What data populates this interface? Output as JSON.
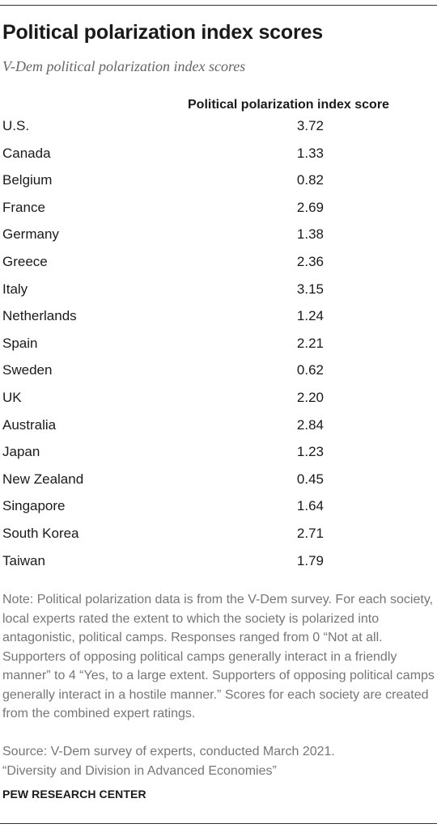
{
  "header": {
    "title": "Political polarization index scores",
    "subtitle": "V-Dem political polarization index scores"
  },
  "chart_data": {
    "type": "table",
    "columns": [
      "",
      "Political polarization index score"
    ],
    "rows": [
      {
        "country": "U.S.",
        "score": "3.72"
      },
      {
        "country": "Canada",
        "score": "1.33"
      },
      {
        "country": "Belgium",
        "score": "0.82"
      },
      {
        "country": "France",
        "score": "2.69"
      },
      {
        "country": "Germany",
        "score": "1.38"
      },
      {
        "country": "Greece",
        "score": "2.36"
      },
      {
        "country": "Italy",
        "score": "3.15"
      },
      {
        "country": "Netherlands",
        "score": "1.24"
      },
      {
        "country": "Spain",
        "score": "2.21"
      },
      {
        "country": "Sweden",
        "score": "0.62"
      },
      {
        "country": "UK",
        "score": "2.20"
      },
      {
        "country": "Australia",
        "score": "2.84"
      },
      {
        "country": "Japan",
        "score": "1.23"
      },
      {
        "country": "New Zealand",
        "score": "0.45"
      },
      {
        "country": "Singapore",
        "score": "1.64"
      },
      {
        "country": "South Korea",
        "score": "2.71"
      },
      {
        "country": "Taiwan",
        "score": "1.79"
      }
    ]
  },
  "footer": {
    "note": "Note:  Political polarization data is from the V-Dem survey. For each society, local experts rated the extent to which the society is polarized into antagonistic, political camps. Responses ranged from 0 “Not at all. Supporters of opposing political camps generally interact in a friendly manner” to 4 “Yes, to a large extent. Supporters of opposing political camps generally interact in a hostile manner.” Scores for each society are created from the combined expert ratings.",
    "source_line1": "Source: V-Dem survey of experts, conducted March 2021.",
    "source_line2": "“Diversity and Division in Advanced Economies”",
    "brand": "PEW RESEARCH CENTER"
  }
}
